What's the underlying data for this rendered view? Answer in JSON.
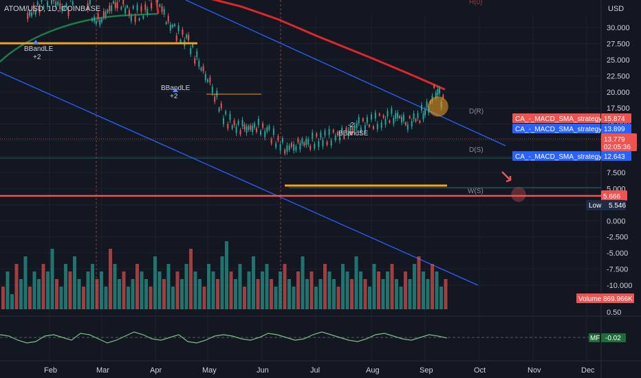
{
  "header": {
    "symbol_title": "ATOM/USD, 1D, COINBASE",
    "currency": "USD",
    "top_level_label": "H(0)"
  },
  "colors": {
    "background": "#131722",
    "up": "#26a69a",
    "down": "#ef5350",
    "sma_red": "#e0262b",
    "sma_green": "#1c7d4a",
    "channel": "#2962ff",
    "orange": "#f7a21b",
    "mf": "#1f6b3a"
  },
  "chart_data": [
    {
      "type": "line",
      "title": "ATOM/USD, 1D, COINBASE",
      "x": [
        "Feb",
        "Mar",
        "Apr",
        "May",
        "Jun",
        "Jul",
        "Aug",
        "Sep",
        "Oct",
        "Nov",
        "Dec"
      ],
      "y_ticks": [
        "30.000",
        "27.500",
        "25.000",
        "22.500",
        "20.000",
        "17.500",
        "15.000",
        "12.500",
        "10.000",
        "7.500",
        "5.000",
        "2.500",
        "0.000",
        "-2.500",
        "-5.000",
        "-7.500",
        "-10.000"
      ],
      "ylim": [
        -10,
        32
      ],
      "grid": true,
      "series": [
        {
          "name": "ATOM/USD",
          "points": [
            [
              "Jan 20",
              27.5
            ],
            [
              "Feb 01",
              30.5
            ],
            [
              "Feb 10",
              28.2
            ],
            [
              "Feb 18",
              33.0
            ],
            [
              "Feb 25",
              26.8
            ],
            [
              "Mar 01",
              27.2
            ],
            [
              "Mar 10",
              30.0
            ],
            [
              "Mar 18",
              28.0
            ],
            [
              "Mar 25",
              27.8
            ],
            [
              "Apr 01",
              31.0
            ],
            [
              "Apr 06",
              27.5
            ],
            [
              "Apr 12",
              25.2
            ],
            [
              "Apr 20",
              23.5
            ],
            [
              "Apr 26",
              20.0
            ],
            [
              "May 01",
              18.0
            ],
            [
              "May 05",
              15.5
            ],
            [
              "May 10",
              12.0
            ],
            [
              "May 15",
              10.6
            ],
            [
              "May 22",
              10.0
            ],
            [
              "May 30",
              10.3
            ],
            [
              "Jun 05",
              9.3
            ],
            [
              "Jun 10",
              8.0
            ],
            [
              "Jun 15",
              7.0
            ],
            [
              "Jun 20",
              7.6
            ],
            [
              "Jun 28",
              8.0
            ],
            [
              "Jul 05",
              8.5
            ],
            [
              "Jul 12",
              8.8
            ],
            [
              "Jul 18",
              9.5
            ],
            [
              "Jul 25",
              10.5
            ],
            [
              "Aug 01",
              11.0
            ],
            [
              "Aug 08",
              11.5
            ],
            [
              "Aug 15",
              12.2
            ],
            [
              "Aug 22",
              11.0
            ],
            [
              "Aug 29",
              12.0
            ],
            [
              "Sep 01",
              13.2
            ],
            [
              "Sep 03",
              13.0
            ],
            [
              "Sep 06",
              16.0
            ],
            [
              "Sep 09",
              15.0
            ],
            [
              "Sep 12",
              13.78
            ]
          ]
        },
        {
          "name": "SMA",
          "points": [
            [
              "Jan 20",
              30.0
            ],
            [
              "Feb 10",
              30.8
            ],
            [
              "Mar 01",
              31.0
            ],
            [
              "Apr 01",
              31.2
            ],
            [
              "Apr 20",
              30.8
            ],
            [
              "May 01",
              30.3
            ],
            [
              "May 20",
              29.0
            ],
            [
              "Jun 10",
              27.0
            ],
            [
              "Jul 01",
              24.5
            ],
            [
              "Aug 01",
              21.0
            ],
            [
              "Aug 25",
              18.3
            ],
            [
              "Sep 12",
              16.1
            ]
          ]
        }
      ],
      "last_price": {
        "value": "13.779",
        "countdown": "02:05:36"
      },
      "plot_labels": [
        {
          "text": "CA_-_MACD_SMA_strategy:Plot",
          "value": "15.874",
          "color": "#ef5350"
        },
        {
          "text": "CA_-_MACD_SMA_strategy:Plot",
          "value": "13.899",
          "color": "#2962ff"
        },
        {
          "text": "CA_-_MACD_SMA_strategy:Plot",
          "value": "12.643",
          "color": "#2962ff"
        }
      ],
      "red_level": {
        "value": "5.666"
      },
      "low": {
        "label": "Low",
        "value": "5.546"
      },
      "levels": [
        {
          "name": "D(R)",
          "value": 16.8
        },
        {
          "name": "D(S)",
          "value": 12.9
        },
        {
          "name": "W(S)",
          "value": 6.7
        }
      ],
      "annotations": [
        {
          "text": "BBandLE",
          "sub": "+2",
          "x": "Feb 05",
          "dir": "up"
        },
        {
          "text": "BBandLE",
          "sub": "+2",
          "x": "Apr 18",
          "dir": "up"
        },
        {
          "text": "-2",
          "sub": "BBandSE",
          "x": "Jul 22",
          "dir": "down"
        }
      ]
    },
    {
      "type": "bar",
      "title": "Volume",
      "value_label": "869.966K",
      "values": [
        3,
        5,
        2,
        6,
        4,
        7,
        3,
        5,
        4,
        6,
        5,
        8,
        4,
        3,
        6,
        5,
        7,
        4,
        3,
        5,
        6,
        4,
        5,
        3,
        8,
        6,
        4,
        5,
        3,
        4,
        6,
        5,
        4,
        3,
        7,
        5,
        4,
        6,
        3,
        5,
        4,
        6,
        8,
        5,
        4,
        3,
        6,
        5,
        4,
        7,
        9,
        5,
        4,
        6,
        3,
        5,
        7,
        4,
        5,
        6,
        4,
        3,
        5,
        6,
        4,
        3,
        5,
        7,
        4,
        5,
        3,
        4,
        6,
        5,
        4,
        3,
        6,
        5,
        4,
        7,
        5,
        4,
        3,
        6,
        5,
        4,
        5,
        6,
        4,
        3,
        5,
        4,
        6,
        7,
        5,
        4,
        6,
        5,
        3,
        4
      ]
    },
    {
      "type": "line",
      "title": "MF",
      "value_label": "-0.02",
      "y_ticks": [
        "0.50"
      ],
      "values": [
        0.1,
        0.05,
        -0.1,
        -0.2,
        -0.15,
        0.05,
        0.1,
        0.0,
        -0.1,
        0.15,
        0.1,
        -0.05,
        -0.2,
        -0.1,
        0.05,
        0.2,
        0.1,
        -0.05,
        -0.1,
        0.0,
        0.1,
        -0.15,
        -0.2,
        -0.1,
        0.05,
        0.1,
        0.05,
        -0.05,
        -0.1,
        0.0,
        0.15,
        0.1,
        0.0,
        -0.1,
        -0.05,
        0.1,
        0.2,
        0.1,
        0.0,
        -0.1,
        -0.15,
        -0.05,
        0.1,
        0.15,
        0.05,
        -0.05,
        -0.1,
        0.0,
        0.1,
        0.05,
        -0.02
      ]
    }
  ]
}
